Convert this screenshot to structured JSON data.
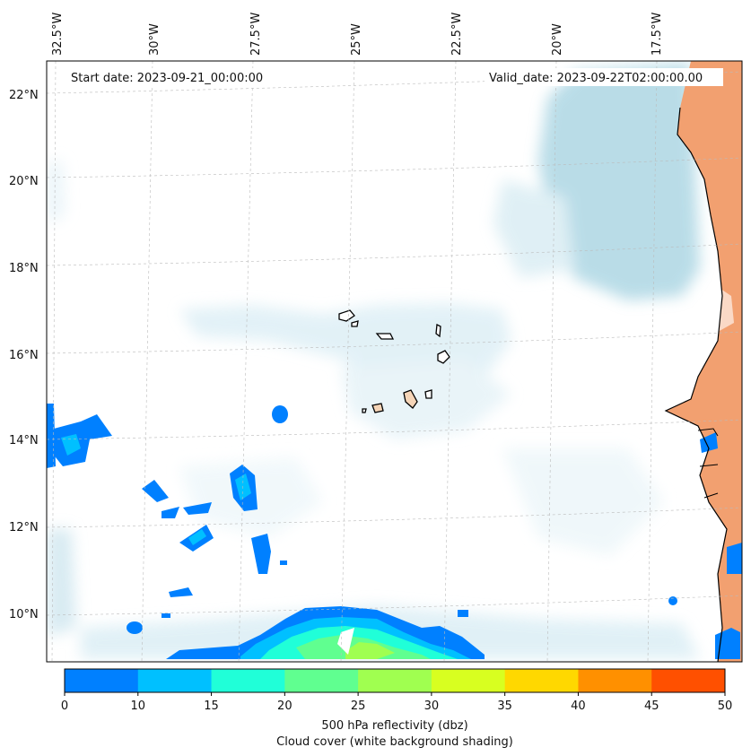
{
  "map": {
    "start_date": "Start date: 2023-09-21_00:00:00",
    "valid_date": "Valid_date: 2023-09-22T02:00:00.00",
    "longitude_labels": [
      "32.5°W",
      "30°W",
      "27.5°W",
      "25°W",
      "22.5°W",
      "20°W",
      "17.5°W"
    ],
    "latitude_labels": [
      "22°N",
      "20°N",
      "18°N",
      "16°N",
      "14°N",
      "12°N",
      "10°N"
    ],
    "grid": true
  },
  "colorbar": {
    "ticks": [
      "0",
      "10",
      "15",
      "20",
      "25",
      "30",
      "35",
      "40",
      "45",
      "50"
    ],
    "colors": [
      "#0080ff",
      "#00c0ff",
      "#20ffd8",
      "#60ff90",
      "#a0ff50",
      "#d8ff20",
      "#ffd800",
      "#ff9000",
      "#ff5000"
    ],
    "title_line1": "500 hPa reflectivity (dbz)",
    "title_line2": "Cloud cover (white background shading)"
  },
  "colors": {
    "cloud": "#a8d4e2",
    "land": "#f2a070",
    "island_fill": "#f5d5b8",
    "coast": "#000000"
  }
}
